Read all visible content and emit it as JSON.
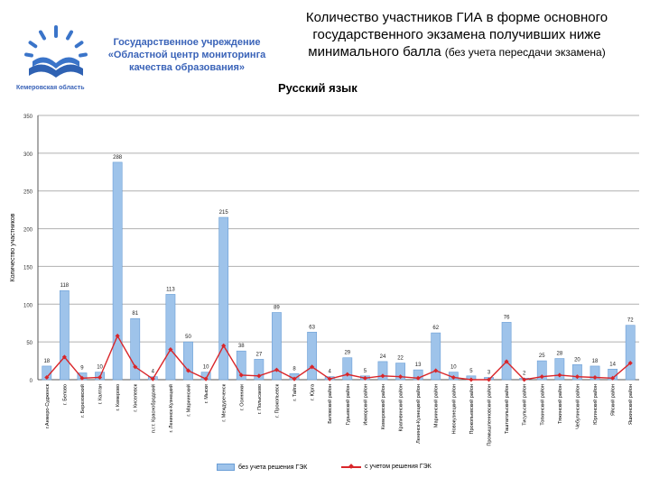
{
  "header": {
    "org_name": "Государственное учреждение «Областной центр мониторинга качества образования»",
    "region": "Кемеровская область",
    "title_main": "Количество участников ГИА в форме основного государственного экзамена получивших ниже минимального балла",
    "title_sub": "(без учета пересдачи экзамена)",
    "subject": "Русский язык"
  },
  "colors": {
    "bar": "#9ec3ea",
    "bar_border": "#6a9ed6",
    "line": "#d9262a",
    "grid": "#b0b0b0"
  },
  "chart_data": {
    "type": "bar",
    "ylabel": "Количество участников",
    "ylim": [
      0,
      350
    ],
    "yticks": [
      0,
      50,
      100,
      150,
      200,
      250,
      300,
      350
    ],
    "grid": true,
    "legend_position": "bottom",
    "categories": [
      "г.Анжеро-Судженск",
      "г. Белово",
      "г. Березовский",
      "г. Калтан",
      "г. Кемерово",
      "г. Киселевск",
      "п.г.т. Краснобродский",
      "г. Ленинск-Кузнецкий",
      "г. Мариинский",
      "г. Мыски",
      "г. Междуреченск",
      "г. Осинники",
      "г. Полысаево",
      "г. Прокопьевск",
      "г. Тайга",
      "г. Юрга",
      "Беловский район",
      "Гурьевский район",
      "Ижморский район",
      "Кемеровский район",
      "Крапивинский район",
      "Ленинск-Кузнецкий район",
      "Мариинский район",
      "Новокузнецкий район",
      "Прокопьевский район",
      "Промышленновский район",
      "Таштагольский район",
      "Тисульский район",
      "Топкинский район",
      "Тяжинский район",
      "Чебулинский район",
      "Юргинский район",
      "Яйский район",
      "Яшкинский район"
    ],
    "series": [
      {
        "name": "без учета решения ГЭК",
        "values": [
          18,
          118,
          9,
          10,
          288,
          81,
          4,
          113,
          50,
          10,
          215,
          38,
          27,
          89,
          8,
          63,
          4,
          29,
          5,
          24,
          22,
          13,
          62,
          10,
          5,
          3,
          76,
          2,
          25,
          28,
          20,
          18,
          14,
          72
        ]
      },
      {
        "name": "с учетом решения ГЭК",
        "values": [
          3,
          30,
          2,
          3,
          58,
          17,
          1,
          40,
          12,
          1,
          45,
          6,
          5,
          13,
          1,
          17,
          1,
          7,
          2,
          5,
          4,
          2,
          12,
          3,
          0,
          0,
          24,
          0,
          4,
          6,
          4,
          3,
          2,
          22
        ]
      }
    ],
    "bar_labels": [
      "18",
      "118",
      "9",
      "10",
      "288",
      "81",
      "4",
      "113",
      "50",
      "10",
      "215",
      "38",
      "27",
      "89",
      "8",
      "63",
      "4",
      "29",
      "5",
      "24",
      "22",
      "13",
      "62",
      "10",
      "5",
      "3",
      "76",
      "2",
      "25",
      "28",
      "20",
      "18",
      "14",
      "72"
    ]
  }
}
